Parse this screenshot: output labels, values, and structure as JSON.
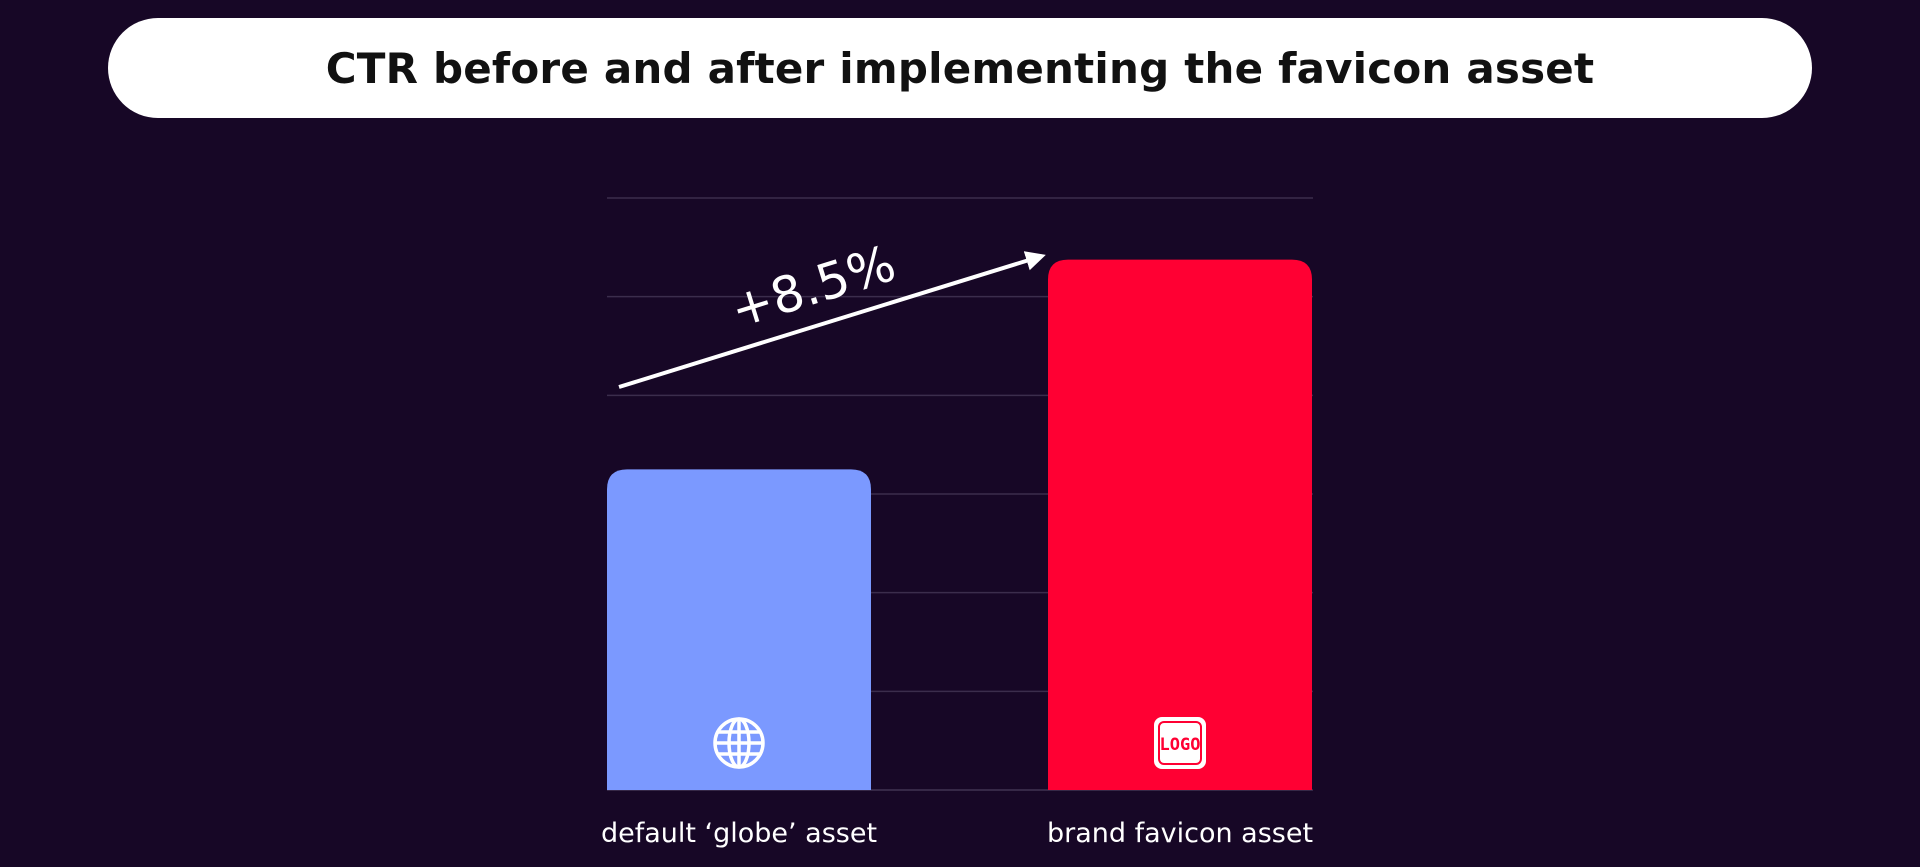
{
  "title": "CTR before and after implementing the favicon asset",
  "colors": {
    "background": "#170726",
    "bar_globe": "#7b99ff",
    "bar_brand": "#ff0033",
    "grid": "#3b2d4c",
    "text": "#ffffff"
  },
  "chart_data": {
    "type": "bar",
    "categories": [
      "default ‘globe’ asset",
      "brand favicon asset"
    ],
    "values": [
      100,
      108.5
    ],
    "icons": [
      "globe-icon",
      "logo-icon"
    ],
    "icon_labels": [
      "",
      "LOGO"
    ],
    "annotation": "+8.5%",
    "title": "CTR before and after implementing the favicon asset",
    "xlabel": "",
    "ylabel": "",
    "ylim": [
      87,
      111
    ],
    "grid": true,
    "legend": "none"
  }
}
